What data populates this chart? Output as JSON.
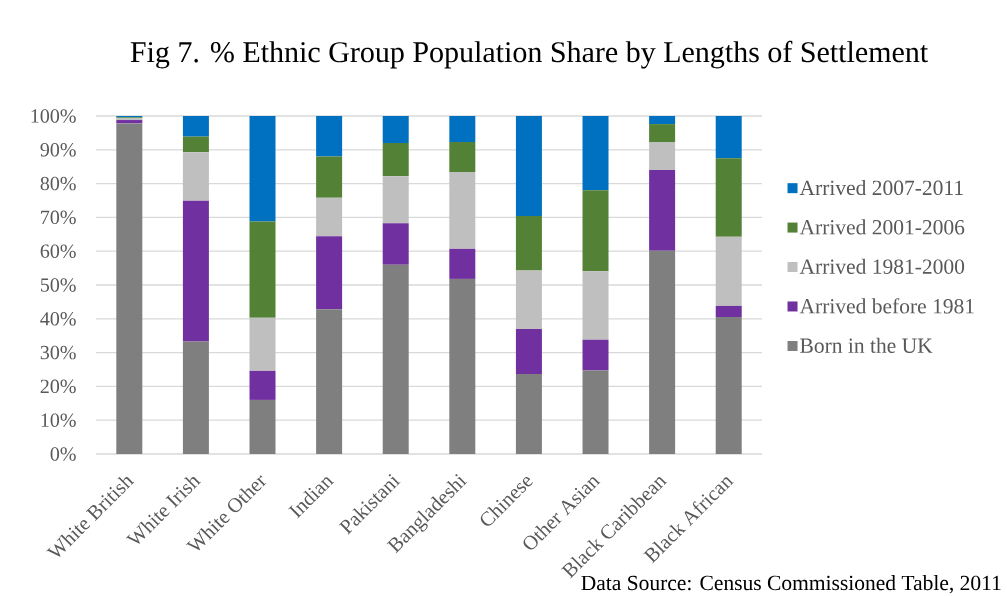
{
  "chart_data": {
    "type": "bar",
    "stacked": true,
    "title": "Fig 7. % Ethnic Group Population Share by Lengths of Settlement",
    "categories": [
      "White British",
      "White Irish",
      "White Other",
      "Indian",
      "Pakistani",
      "Bangladeshi",
      "Chinese",
      "Other Asian",
      "Black Caribbean",
      "Black African"
    ],
    "series": [
      {
        "name": "Born in the UK",
        "color": "#7f7f7f",
        "values": [
          97.8,
          33.3,
          16.0,
          42.8,
          56.0,
          51.8,
          23.7,
          24.7,
          60.1,
          40.5
        ]
      },
      {
        "name": "Arrived before 1981",
        "color": "#7030a0",
        "values": [
          1.0,
          41.6,
          8.6,
          21.6,
          12.3,
          8.9,
          13.3,
          9.1,
          23.9,
          3.3
        ]
      },
      {
        "name": "Arrived 1981-2000",
        "color": "#bfbfbf",
        "values": [
          0.5,
          14.4,
          15.7,
          11.4,
          13.9,
          22.7,
          17.3,
          20.3,
          8.3,
          20.5
        ]
      },
      {
        "name": "Arrived 2001-2006",
        "color": "#538135",
        "values": [
          0.3,
          4.6,
          28.5,
          12.2,
          9.8,
          8.9,
          16.1,
          23.9,
          5.3,
          23.2
        ]
      },
      {
        "name": "Arrived 2007-2011",
        "color": "#0070c0",
        "values": [
          0.4,
          6.1,
          31.2,
          12.0,
          8.0,
          7.7,
          29.6,
          22.0,
          2.4,
          12.5
        ]
      }
    ],
    "ylim": [
      0,
      100
    ],
    "yticks": [
      {
        "value": 0,
        "label": "0%"
      },
      {
        "value": 10,
        "label": "10%"
      },
      {
        "value": 20,
        "label": "20%"
      },
      {
        "value": 30,
        "label": "30%"
      },
      {
        "value": 40,
        "label": "40%"
      },
      {
        "value": 50,
        "label": "50%"
      },
      {
        "value": 60,
        "label": "60%"
      },
      {
        "value": 70,
        "label": "70%"
      },
      {
        "value": 80,
        "label": "80%"
      },
      {
        "value": 90,
        "label": "90%"
      },
      {
        "value": 100,
        "label": "100%"
      }
    ],
    "grid": "y",
    "legend": "right",
    "annotations": [
      "Data Source: Census Commissioned Table, 2011"
    ]
  }
}
